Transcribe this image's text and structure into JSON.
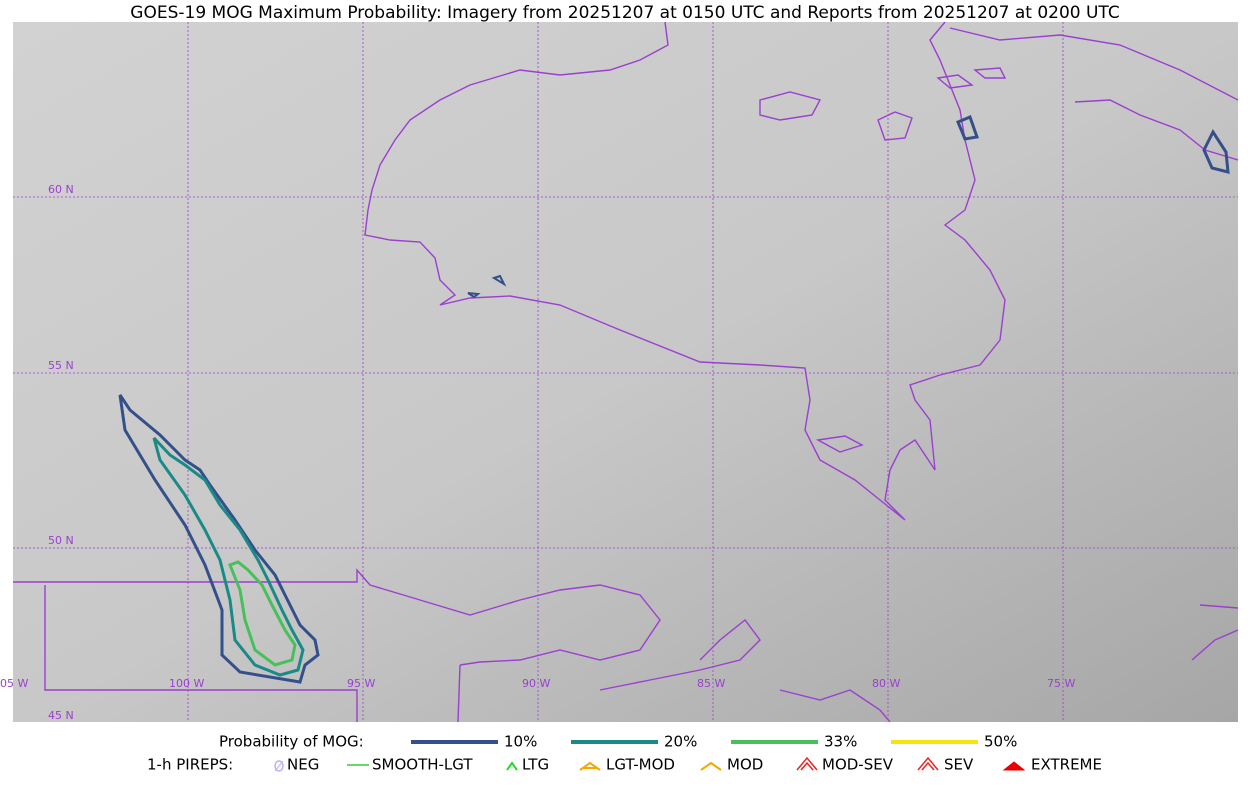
{
  "title": "GOES-19 MOG Maximum Probability: Imagery from 20251207 at 0150 UTC and Reports from 20251207 at 0200 UTC",
  "latitude_labels": [
    "60 N",
    "55 N",
    "50 N",
    "45 N"
  ],
  "longitude_labels": [
    "05 W",
    "100 W",
    "95 W",
    "90 W",
    "85 W",
    "80 W",
    "75 W"
  ],
  "legend": {
    "probability_title": "Probability of MOG:",
    "probability_levels": [
      {
        "label": "10%",
        "color": "#34508a"
      },
      {
        "label": "20%",
        "color": "#1a8a86"
      },
      {
        "label": "33%",
        "color": "#46c15a"
      },
      {
        "label": "50%",
        "color": "#f5e50c"
      }
    ],
    "pireps_title": "1-h PIREPS:",
    "pireps": [
      "NEG",
      "SMOOTH-LGT",
      "LTG",
      "LGT-MOD",
      "MOD",
      "MOD-SEV",
      "SEV",
      "EXTREME"
    ]
  }
}
